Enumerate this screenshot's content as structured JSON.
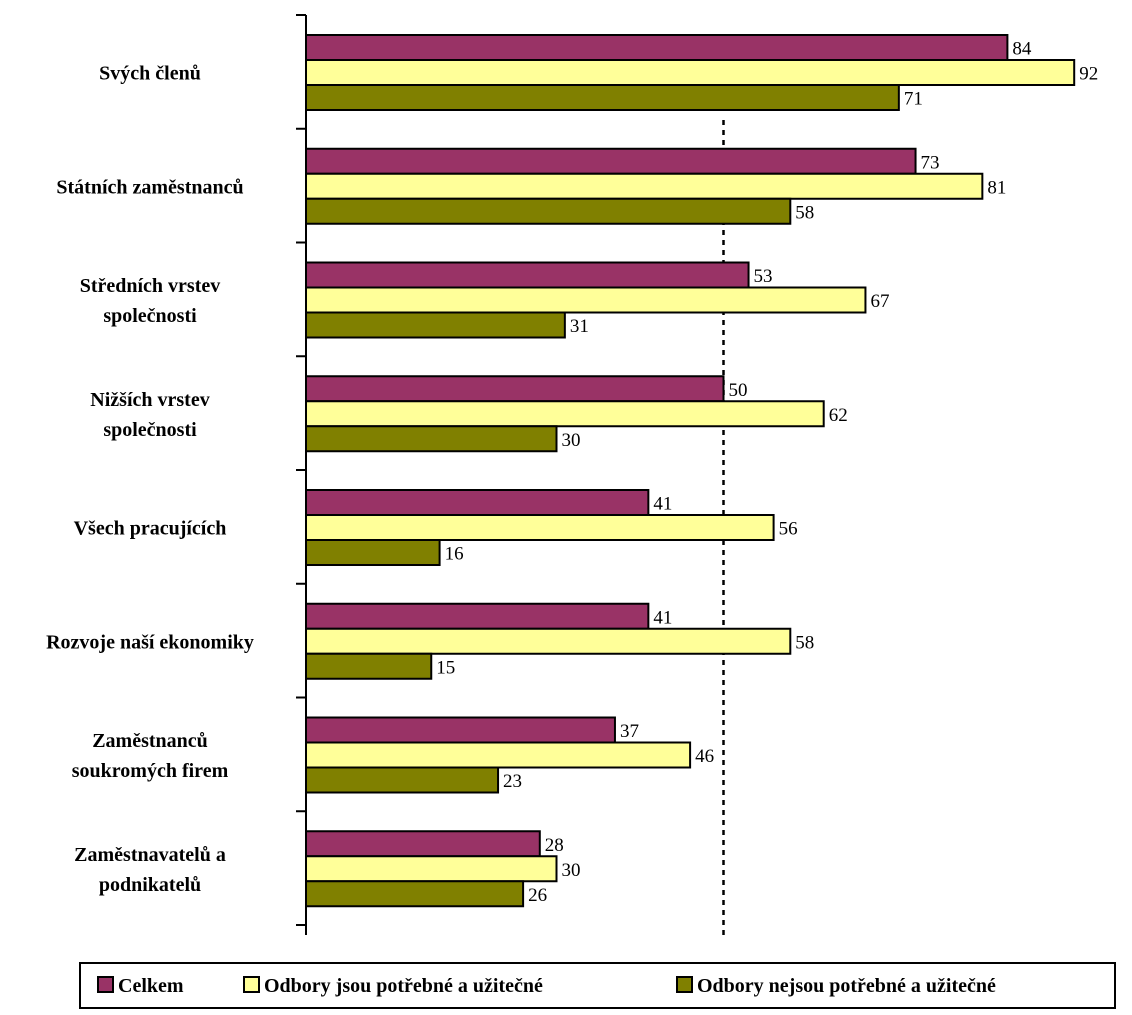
{
  "chart_data": {
    "type": "bar",
    "orientation": "horizontal",
    "categories": [
      [
        "Svých členů"
      ],
      [
        "Státních zaměstnanců"
      ],
      [
        "Středních vrstev",
        "společnosti"
      ],
      [
        "Nižších vrstev",
        "společnosti"
      ],
      [
        "Všech pracujících"
      ],
      [
        "Rozvoje naší ekonomiky"
      ],
      [
        "Zaměstnanců",
        "soukromých firem"
      ],
      [
        "Zaměstnavatelů a",
        "podnikatelů"
      ]
    ],
    "series": [
      {
        "name": "Celkem",
        "color": "#993366",
        "values": [
          84,
          73,
          53,
          50,
          41,
          41,
          37,
          28
        ]
      },
      {
        "name": "Odbory jsou potřebné a užitečné",
        "color": "#FFFF99",
        "values": [
          92,
          81,
          67,
          62,
          56,
          58,
          46,
          30
        ]
      },
      {
        "name": "Odbory nejsou potřebné a užitečné",
        "color": "#808000",
        "values": [
          71,
          58,
          31,
          30,
          16,
          15,
          23,
          26
        ]
      }
    ],
    "xlim": [
      0,
      100
    ],
    "reference_line": 50,
    "grid": false,
    "legend_position": "bottom",
    "title": "",
    "xlabel": "",
    "ylabel": ""
  }
}
